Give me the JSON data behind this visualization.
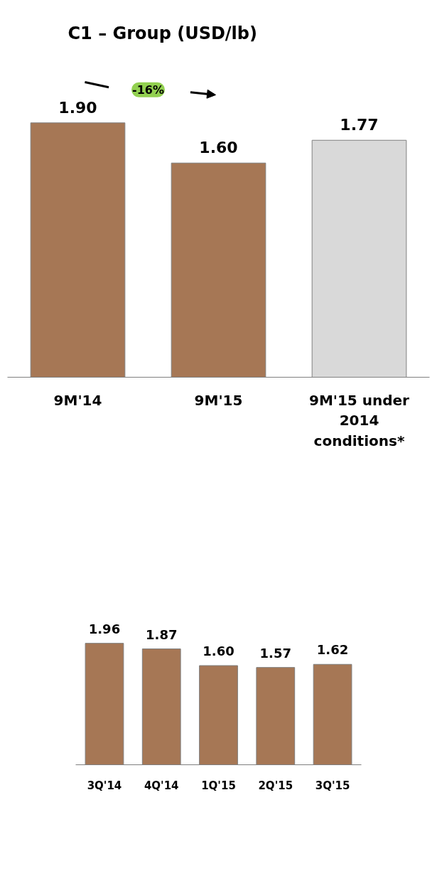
{
  "chart_data": [
    {
      "type": "bar",
      "title": "C1 – Group (USD/lb)",
      "categories": [
        "9M'14",
        "9M'15",
        "9M'15 under 2014 conditions*"
      ],
      "values": [
        1.9,
        1.6,
        1.77
      ],
      "value_labels": [
        "1.90",
        "1.60",
        "1.77"
      ],
      "colors": [
        "#a67755",
        "#a67755",
        "#d9d9d9"
      ],
      "annotations": [
        "-16%"
      ]
    },
    {
      "type": "bar",
      "categories": [
        "3Q'14",
        "4Q'14",
        "1Q'15",
        "2Q'15",
        "3Q'15"
      ],
      "values": [
        1.96,
        1.87,
        1.6,
        1.57,
        1.62
      ],
      "value_labels": [
        "1.96",
        "1.87",
        "1.60",
        "1.57",
        "1.62"
      ],
      "colors": [
        "#a67755",
        "#a67755",
        "#a67755",
        "#a67755",
        "#a67755"
      ]
    }
  ]
}
